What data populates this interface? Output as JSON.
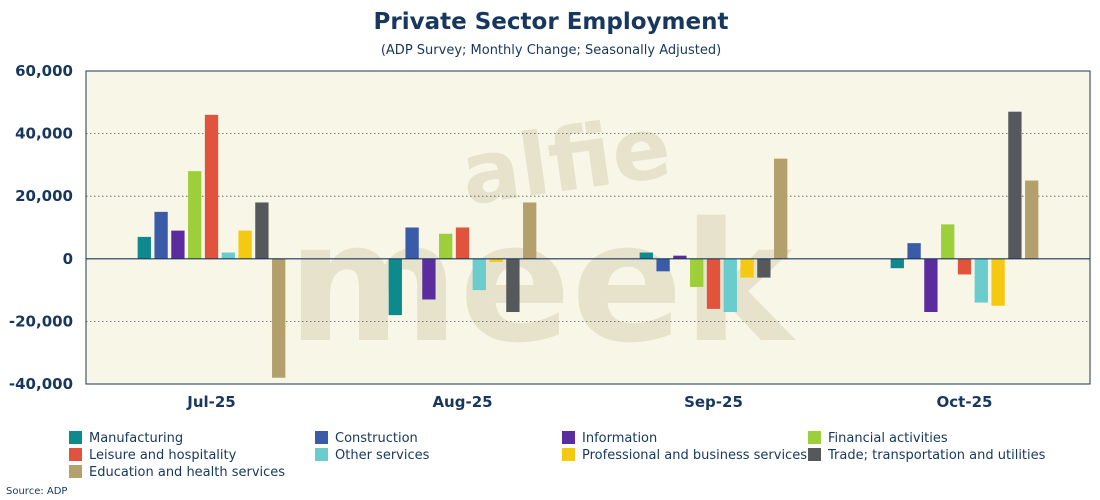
{
  "chart_data": {
    "type": "bar",
    "title": "Private Sector Employment",
    "subtitle": "(ADP Survey; Monthly Change; Seasonally Adjusted)",
    "source": "Source: ADP",
    "watermark": [
      "alfie",
      "meek"
    ],
    "xlabel": "",
    "ylabel": "",
    "ylim": [
      -40000,
      60000
    ],
    "yticks": [
      60000,
      40000,
      20000,
      0,
      -20000,
      -40000
    ],
    "ytick_labels": [
      "60,000",
      "40,000",
      "20,000",
      "0",
      "-20,000",
      "-40,000"
    ],
    "categories": [
      "Jul-25",
      "Aug-25",
      "Sep-25",
      "Oct-25"
    ],
    "legend_position": "bottom",
    "series": [
      {
        "name": "Manufacturing",
        "color": "#0e8a8e",
        "values": [
          7000,
          -18000,
          2000,
          -3000
        ]
      },
      {
        "name": "Construction",
        "color": "#3a5ba8",
        "values": [
          15000,
          10000,
          -4000,
          5000
        ]
      },
      {
        "name": "Information",
        "color": "#5b2c9e",
        "values": [
          9000,
          -13000,
          1000,
          -17000
        ]
      },
      {
        "name": "Financial activities",
        "color": "#9dcf3a",
        "values": [
          28000,
          8000,
          -9000,
          11000
        ]
      },
      {
        "name": "Leisure and hospitality",
        "color": "#e2533d",
        "values": [
          46000,
          10000,
          -16000,
          -5000
        ]
      },
      {
        "name": "Other services",
        "color": "#6acccd",
        "values": [
          2000,
          -10000,
          -17000,
          -14000
        ]
      },
      {
        "name": "Professional and business services",
        "color": "#f5c812",
        "values": [
          9000,
          -1000,
          -6000,
          -15000
        ]
      },
      {
        "name": "Trade; transportation and utilities",
        "color": "#55595c",
        "values": [
          18000,
          -17000,
          -6000,
          47000
        ]
      },
      {
        "name": "Education and health services",
        "color": "#b3a06c",
        "values": [
          -38000,
          18000,
          32000,
          25000
        ]
      }
    ]
  }
}
